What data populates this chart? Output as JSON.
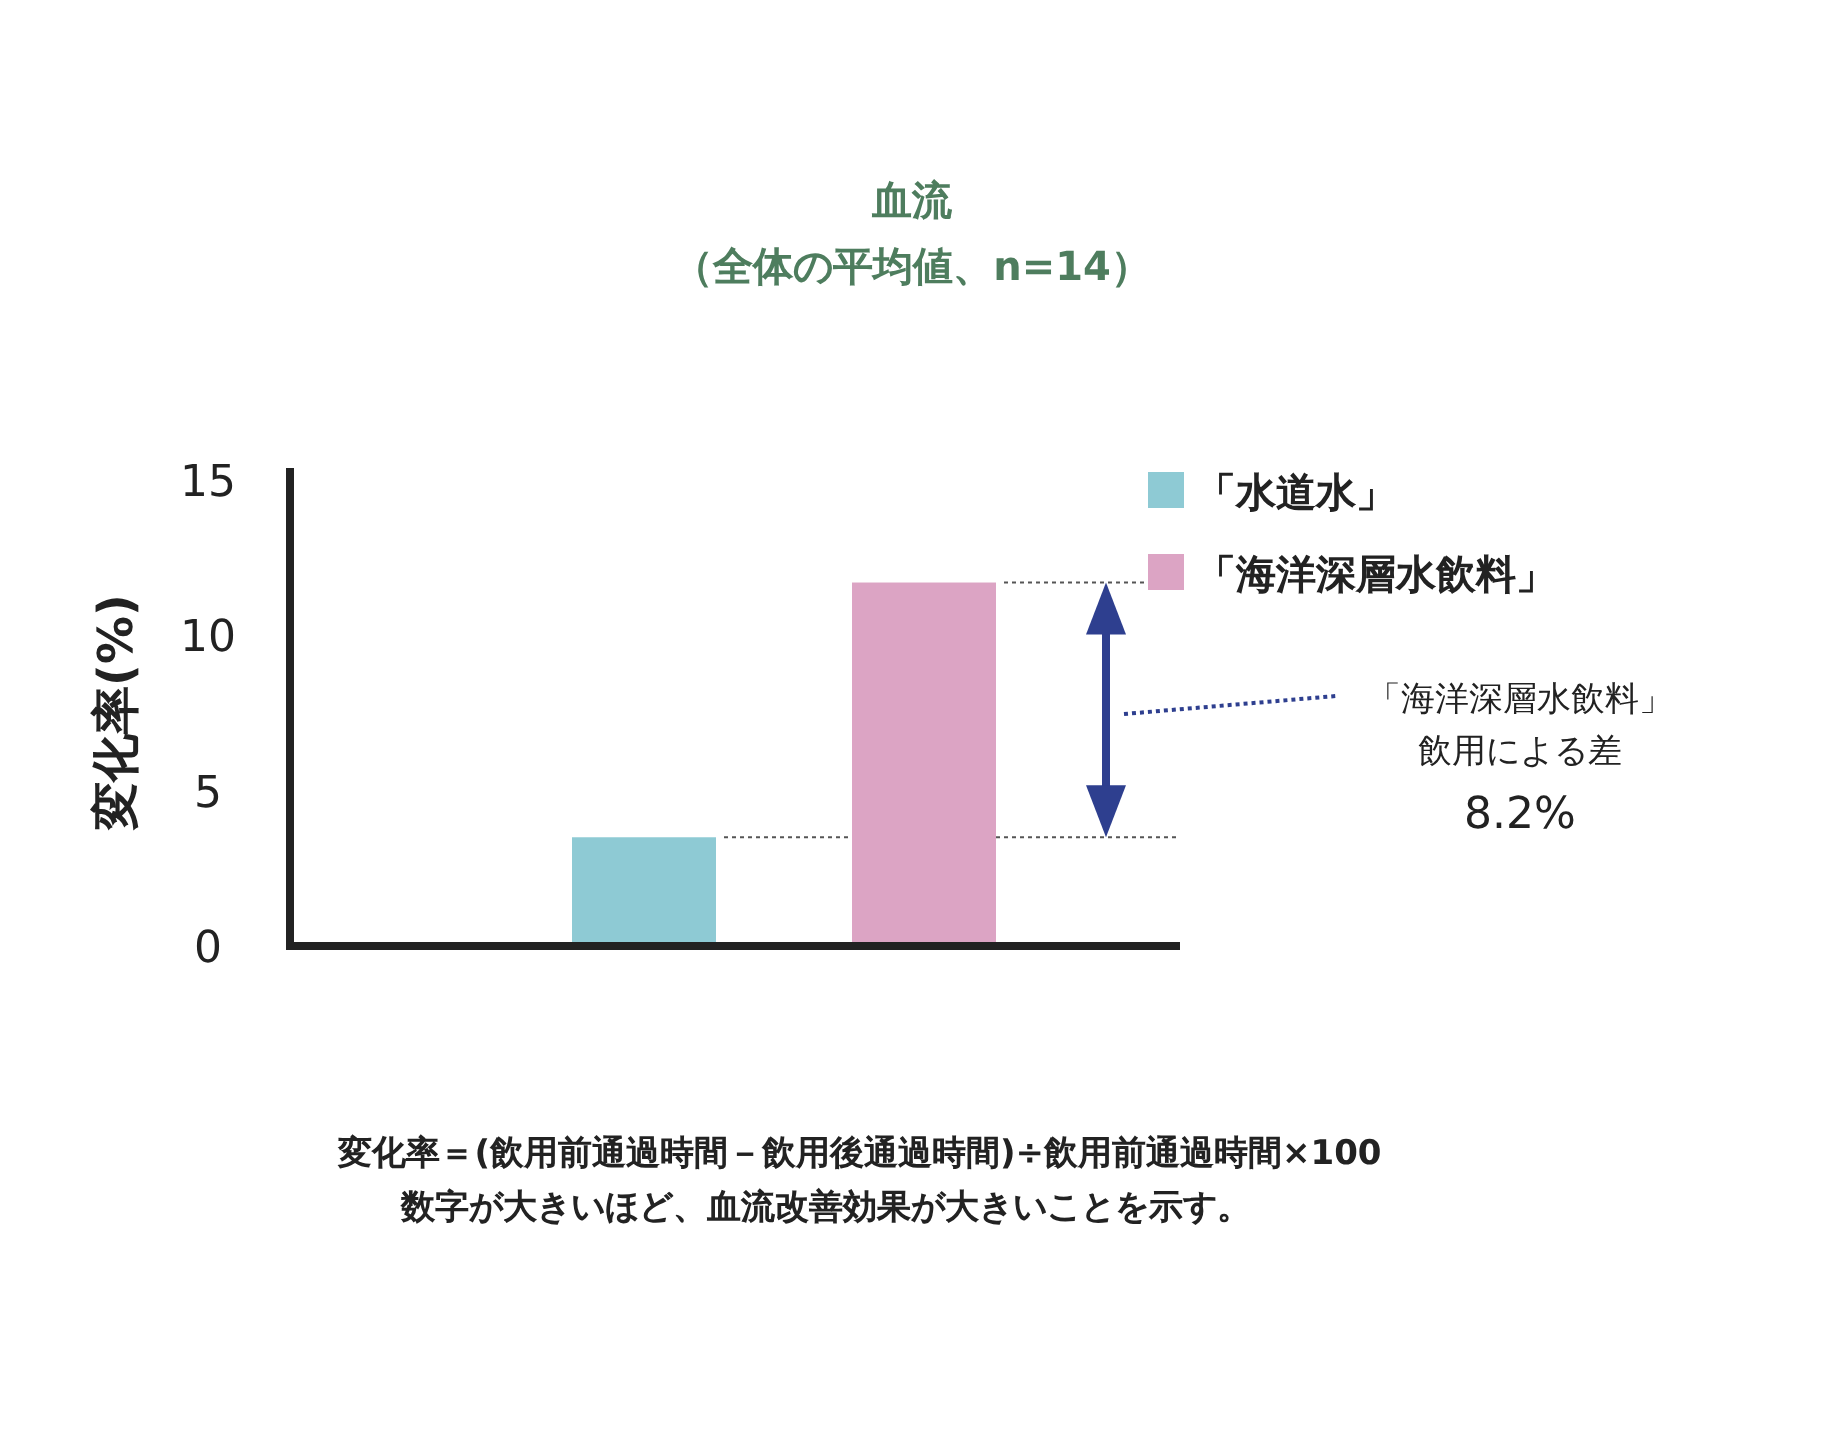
{
  "chart_data": {
    "type": "bar",
    "title": "血流",
    "subtitle": "（全体の平均値、n=14）",
    "ylabel": "変化率(%)",
    "categories": [
      null,
      null
    ],
    "series": [
      {
        "name": "「水道水」",
        "color": "#8ecad4",
        "values": [
          3.5,
          null
        ]
      },
      {
        "name": "「海洋深層水飲料」",
        "color": "#dca4c4",
        "values": [
          null,
          11.7
        ]
      }
    ],
    "ylim": [
      0,
      15
    ],
    "yticks": [
      0,
      5,
      10,
      15
    ],
    "grid": false,
    "legend": "top right",
    "ref_lines": [
      {
        "axis": "y",
        "value": 3.5,
        "color": "#555555",
        "line_style": "dotted"
      },
      {
        "axis": "y",
        "value": 11.7,
        "color": "#555555",
        "line_style": "dotted"
      }
    ],
    "annotations": [
      "「海洋深層水飲料」",
      "飲用による差",
      "8.2%",
      "変化率＝(飲用前通過時間－飲用後通過時間)÷飲用前通過時間×100",
      "数字が大きいほど、血流改善効果が大きいことを示す。"
    ]
  }
}
